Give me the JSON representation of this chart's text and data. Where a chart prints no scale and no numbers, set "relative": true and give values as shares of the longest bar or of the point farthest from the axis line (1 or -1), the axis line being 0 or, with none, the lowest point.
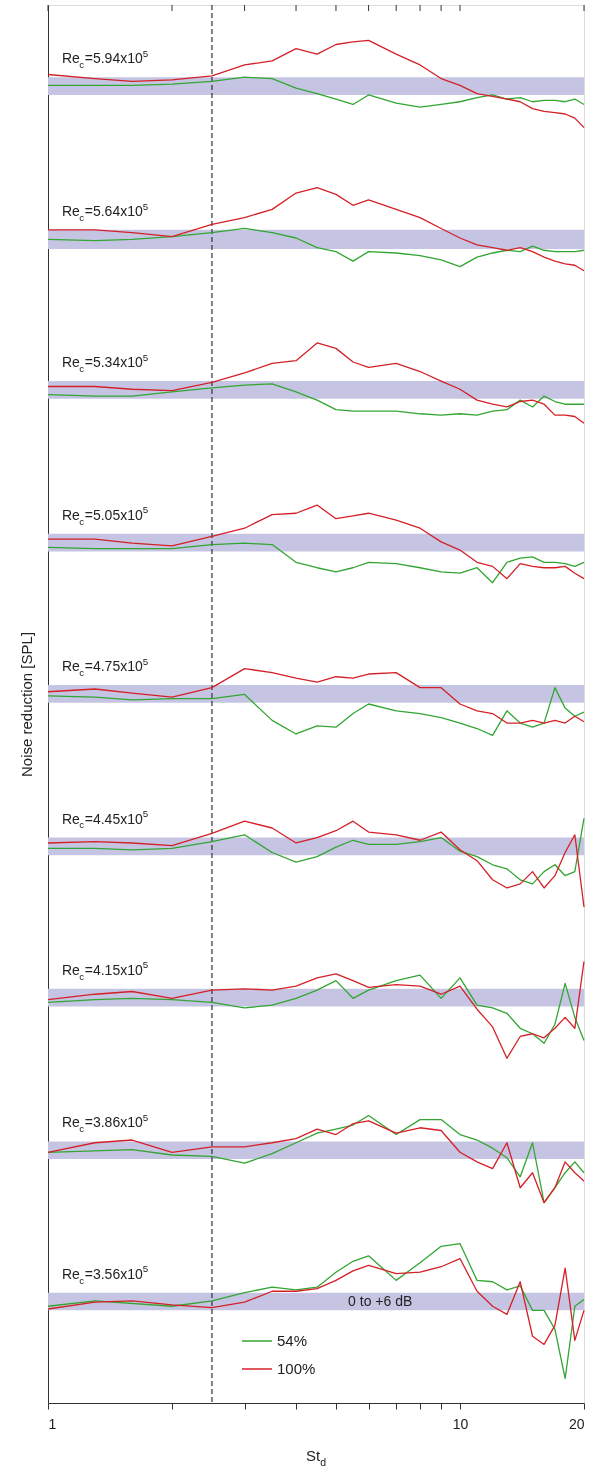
{
  "chart_data": {
    "type": "line",
    "relative": true,
    "xlabel": "St$_{d}$",
    "ylabel": "Noise reduction [SPL]",
    "log": "x",
    "xlim": [
      1,
      20
    ],
    "xticks": [
      1,
      {
        "value": 2,
        "label": null
      },
      {
        "value": 3,
        "label": null
      },
      {
        "value": 4,
        "label": null
      },
      {
        "value": 5,
        "label": null
      },
      {
        "value": 6,
        "label": null
      },
      {
        "value": 7,
        "label": null
      },
      {
        "value": 8,
        "label": null
      },
      {
        "value": 9,
        "label": null
      },
      10,
      20
    ],
    "x": [
      1,
      1.3,
      1.6,
      2,
      2.5,
      3,
      3.5,
      4,
      4.5,
      5,
      5.5,
      6,
      7,
      8,
      9,
      10,
      11,
      12,
      13,
      14,
      15,
      16,
      17,
      18,
      19,
      20
    ],
    "legend": "bottom",
    "grid": false,
    "series": [
      {
        "name": "54%",
        "color": "#33a532",
        "values": [
          0.967,
          0.967,
          0.967,
          0.968,
          0.97,
          0.973,
          0.972,
          0.965,
          0.961,
          0.957,
          0.953,
          0.96,
          0.954,
          0.951,
          0.953,
          0.955,
          0.958,
          0.96,
          0.957,
          0.958,
          0.955,
          0.956,
          0.956,
          0.955,
          0.957,
          0.953
        ]
      },
      {
        "name": "100%",
        "color": "#d42027",
        "values": [
          0.975,
          0.972,
          0.97,
          0.971,
          0.974,
          0.982,
          0.985,
          0.994,
          0.99,
          0.997,
          0.999,
          1.0,
          0.99,
          0.982,
          0.972,
          0.967,
          0.961,
          0.959,
          0.957,
          0.955,
          0.95,
          0.948,
          0.947,
          0.946,
          0.943,
          0.936
        ]
      },
      {
        "color": "#33a532",
        "values": [
          0.854,
          0.853,
          0.854,
          0.856,
          0.859,
          0.862,
          0.859,
          0.855,
          0.848,
          0.845,
          0.838,
          0.845,
          0.844,
          0.842,
          0.839,
          0.834,
          0.841,
          0.844,
          0.846,
          0.845,
          0.849,
          0.846,
          0.845,
          0.845,
          0.845,
          0.846
        ]
      },
      {
        "color": "#d42027",
        "values": [
          0.861,
          0.861,
          0.859,
          0.856,
          0.865,
          0.87,
          0.876,
          0.888,
          0.892,
          0.887,
          0.879,
          0.883,
          0.876,
          0.87,
          0.862,
          0.855,
          0.85,
          0.848,
          0.846,
          0.848,
          0.845,
          0.841,
          0.838,
          0.836,
          0.835,
          0.831
        ]
      },
      {
        "color": "#33a532",
        "values": [
          0.74,
          0.739,
          0.739,
          0.742,
          0.745,
          0.747,
          0.748,
          0.742,
          0.736,
          0.729,
          0.728,
          0.728,
          0.728,
          0.726,
          0.725,
          0.726,
          0.725,
          0.728,
          0.729,
          0.736,
          0.731,
          0.739,
          0.735,
          0.733,
          0.733,
          0.733
        ]
      },
      {
        "color": "#d42027",
        "values": [
          0.746,
          0.746,
          0.744,
          0.743,
          0.749,
          0.756,
          0.763,
          0.765,
          0.778,
          0.774,
          0.764,
          0.76,
          0.763,
          0.757,
          0.75,
          0.744,
          0.736,
          0.733,
          0.731,
          0.735,
          0.736,
          0.733,
          0.725,
          0.725,
          0.724,
          0.719
        ]
      },
      {
        "color": "#33a532",
        "values": [
          0.628,
          0.627,
          0.627,
          0.627,
          0.63,
          0.631,
          0.63,
          0.617,
          0.613,
          0.61,
          0.613,
          0.617,
          0.616,
          0.613,
          0.61,
          0.609,
          0.613,
          0.602,
          0.617,
          0.62,
          0.621,
          0.617,
          0.617,
          0.616,
          0.614,
          0.617
        ]
      },
      {
        "color": "#d42027",
        "values": [
          0.634,
          0.634,
          0.631,
          0.629,
          0.636,
          0.642,
          0.652,
          0.653,
          0.659,
          0.649,
          0.651,
          0.653,
          0.648,
          0.642,
          0.632,
          0.626,
          0.617,
          0.614,
          0.605,
          0.616,
          0.614,
          0.613,
          0.613,
          0.614,
          0.609,
          0.605
        ]
      },
      {
        "color": "#33a532",
        "values": [
          0.519,
          0.518,
          0.516,
          0.517,
          0.517,
          0.52,
          0.501,
          0.491,
          0.497,
          0.496,
          0.506,
          0.513,
          0.508,
          0.506,
          0.503,
          0.499,
          0.495,
          0.49,
          0.508,
          0.499,
          0.496,
          0.499,
          0.525,
          0.51,
          0.504,
          0.507
        ]
      },
      {
        "color": "#d42027",
        "values": [
          0.522,
          0.524,
          0.521,
          0.518,
          0.525,
          0.539,
          0.536,
          0.532,
          0.529,
          0.533,
          0.532,
          0.535,
          0.536,
          0.525,
          0.525,
          0.513,
          0.508,
          0.506,
          0.499,
          0.499,
          0.501,
          0.499,
          0.501,
          0.499,
          0.504,
          0.5
        ]
      },
      {
        "color": "#33a532",
        "values": [
          0.407,
          0.407,
          0.406,
          0.407,
          0.412,
          0.417,
          0.404,
          0.397,
          0.401,
          0.408,
          0.413,
          0.41,
          0.41,
          0.412,
          0.415,
          0.405,
          0.401,
          0.395,
          0.392,
          0.384,
          0.381,
          0.39,
          0.395,
          0.387,
          0.39,
          0.429
        ]
      },
      {
        "color": "#d42027",
        "values": [
          0.411,
          0.412,
          0.411,
          0.409,
          0.418,
          0.427,
          0.422,
          0.411,
          0.415,
          0.42,
          0.427,
          0.419,
          0.417,
          0.413,
          0.419,
          0.406,
          0.398,
          0.384,
          0.378,
          0.381,
          0.39,
          0.378,
          0.387,
          0.404,
          0.417,
          0.364
        ]
      },
      {
        "color": "#33a532",
        "values": [
          0.294,
          0.296,
          0.297,
          0.296,
          0.294,
          0.29,
          0.292,
          0.297,
          0.303,
          0.31,
          0.297,
          0.303,
          0.31,
          0.314,
          0.297,
          0.312,
          0.292,
          0.29,
          0.286,
          0.275,
          0.271,
          0.264,
          0.278,
          0.308,
          0.283,
          0.266
        ]
      },
      {
        "color": "#d42027",
        "values": [
          0.296,
          0.3,
          0.302,
          0.297,
          0.303,
          0.304,
          0.303,
          0.306,
          0.312,
          0.315,
          0.31,
          0.305,
          0.307,
          0.306,
          0.3,
          0.306,
          0.289,
          0.276,
          0.253,
          0.269,
          0.271,
          0.268,
          0.275,
          0.283,
          0.275,
          0.324
        ]
      },
      {
        "color": "#33a532",
        "values": [
          0.184,
          0.185,
          0.186,
          0.182,
          0.181,
          0.176,
          0.183,
          0.191,
          0.198,
          0.201,
          0.204,
          0.211,
          0.197,
          0.208,
          0.208,
          0.197,
          0.193,
          0.187,
          0.18,
          0.166,
          0.191,
          0.147,
          0.158,
          0.169,
          0.177,
          0.169
        ]
      },
      {
        "color": "#d42027",
        "values": [
          0.184,
          0.191,
          0.193,
          0.184,
          0.188,
          0.188,
          0.191,
          0.194,
          0.201,
          0.197,
          0.205,
          0.207,
          0.198,
          0.202,
          0.2,
          0.184,
          0.177,
          0.172,
          0.191,
          0.158,
          0.169,
          0.147,
          0.158,
          0.177,
          0.169,
          0.163
        ]
      },
      {
        "color": "#33a532",
        "values": [
          0.071,
          0.075,
          null,
          0.071,
          0.075,
          0.081,
          0.085,
          0.083,
          0.085,
          0.096,
          0.104,
          0.108,
          0.09,
          0.103,
          0.115,
          0.117,
          0.09,
          0.089,
          0.083,
          0.086,
          0.068,
          0.068,
          0.054,
          0.018,
          0.071,
          0.076
        ]
      },
      {
        "color": "#d42027",
        "values": [
          0.069,
          0.074,
          0.075,
          0.072,
          0.07,
          0.074,
          0.082,
          0.082,
          0.084,
          0.09,
          0.097,
          0.101,
          0.095,
          0.096,
          0.1,
          0.106,
          0.082,
          0.071,
          0.065,
          0.089,
          0.049,
          0.043,
          0.057,
          0.099,
          0.046,
          0.068
        ]
      }
    ],
    "bands": [
      {
        "axis": "y",
        "from": 0.96,
        "to": 0.973,
        "color": "#c5c5e3"
      },
      {
        "axis": "y",
        "from": 0.847,
        "to": 0.861,
        "color": "#c5c5e3"
      },
      {
        "axis": "y",
        "from": 0.737,
        "to": 0.75,
        "color": "#c5c5e3"
      },
      {
        "axis": "y",
        "from": 0.625,
        "to": 0.638,
        "color": "#c5c5e3"
      },
      {
        "axis": "y",
        "from": 0.514,
        "to": 0.527,
        "color": "#c5c5e3"
      },
      {
        "axis": "y",
        "from": 0.402,
        "to": 0.415,
        "color": "#c5c5e3"
      },
      {
        "axis": "y",
        "from": 0.291,
        "to": 0.304,
        "color": "#c5c5e3"
      },
      {
        "axis": "y",
        "from": 0.179,
        "to": 0.192,
        "color": "#c5c5e3"
      },
      {
        "axis": "y",
        "from": 0.068,
        "to": 0.081,
        "color": "#c5c5e3",
        "label": "0 to +6 dB"
      }
    ],
    "ref_lines": [
      {
        "axis": "x",
        "value": 2.5,
        "color": "#333333",
        "line_style": "dashed"
      }
    ],
    "annotations": [
      "Re$_{c}$=5.94x10$^{5}$",
      "Re$_{c}$=5.64x10$^{5}$",
      "Re$_{c}$=5.34x10$^{5}$",
      "Re$_{c}$=5.05x10$^{5}$",
      "Re$_{c}$=4.75x10$^{5}$",
      "Re$_{c}$=4.45x10$^{5}$",
      "Re$_{c}$=4.15x10$^{5}$",
      "Re$_{c}$=3.86x10$^{5}$",
      "Re$_{c}$=3.56x10$^{5}$"
    ]
  }
}
